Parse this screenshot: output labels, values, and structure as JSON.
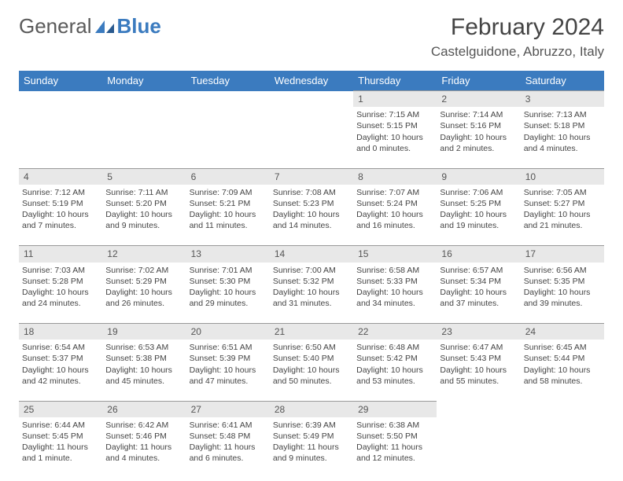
{
  "logo": {
    "text1": "General",
    "text2": "Blue"
  },
  "title": "February 2024",
  "location": "Castelguidone, Abruzzo, Italy",
  "colors": {
    "header_bg": "#3b7bbf",
    "daynum_bg": "#e8e8e8",
    "text": "#444444"
  },
  "weekdays": [
    "Sunday",
    "Monday",
    "Tuesday",
    "Wednesday",
    "Thursday",
    "Friday",
    "Saturday"
  ],
  "weeks": [
    {
      "nums": [
        "",
        "",
        "",
        "",
        "1",
        "2",
        "3"
      ],
      "cells": [
        null,
        null,
        null,
        null,
        {
          "sr": "Sunrise: 7:15 AM",
          "ss": "Sunset: 5:15 PM",
          "dl1": "Daylight: 10 hours",
          "dl2": "and 0 minutes."
        },
        {
          "sr": "Sunrise: 7:14 AM",
          "ss": "Sunset: 5:16 PM",
          "dl1": "Daylight: 10 hours",
          "dl2": "and 2 minutes."
        },
        {
          "sr": "Sunrise: 7:13 AM",
          "ss": "Sunset: 5:18 PM",
          "dl1": "Daylight: 10 hours",
          "dl2": "and 4 minutes."
        }
      ]
    },
    {
      "nums": [
        "4",
        "5",
        "6",
        "7",
        "8",
        "9",
        "10"
      ],
      "cells": [
        {
          "sr": "Sunrise: 7:12 AM",
          "ss": "Sunset: 5:19 PM",
          "dl1": "Daylight: 10 hours",
          "dl2": "and 7 minutes."
        },
        {
          "sr": "Sunrise: 7:11 AM",
          "ss": "Sunset: 5:20 PM",
          "dl1": "Daylight: 10 hours",
          "dl2": "and 9 minutes."
        },
        {
          "sr": "Sunrise: 7:09 AM",
          "ss": "Sunset: 5:21 PM",
          "dl1": "Daylight: 10 hours",
          "dl2": "and 11 minutes."
        },
        {
          "sr": "Sunrise: 7:08 AM",
          "ss": "Sunset: 5:23 PM",
          "dl1": "Daylight: 10 hours",
          "dl2": "and 14 minutes."
        },
        {
          "sr": "Sunrise: 7:07 AM",
          "ss": "Sunset: 5:24 PM",
          "dl1": "Daylight: 10 hours",
          "dl2": "and 16 minutes."
        },
        {
          "sr": "Sunrise: 7:06 AM",
          "ss": "Sunset: 5:25 PM",
          "dl1": "Daylight: 10 hours",
          "dl2": "and 19 minutes."
        },
        {
          "sr": "Sunrise: 7:05 AM",
          "ss": "Sunset: 5:27 PM",
          "dl1": "Daylight: 10 hours",
          "dl2": "and 21 minutes."
        }
      ]
    },
    {
      "nums": [
        "11",
        "12",
        "13",
        "14",
        "15",
        "16",
        "17"
      ],
      "cells": [
        {
          "sr": "Sunrise: 7:03 AM",
          "ss": "Sunset: 5:28 PM",
          "dl1": "Daylight: 10 hours",
          "dl2": "and 24 minutes."
        },
        {
          "sr": "Sunrise: 7:02 AM",
          "ss": "Sunset: 5:29 PM",
          "dl1": "Daylight: 10 hours",
          "dl2": "and 26 minutes."
        },
        {
          "sr": "Sunrise: 7:01 AM",
          "ss": "Sunset: 5:30 PM",
          "dl1": "Daylight: 10 hours",
          "dl2": "and 29 minutes."
        },
        {
          "sr": "Sunrise: 7:00 AM",
          "ss": "Sunset: 5:32 PM",
          "dl1": "Daylight: 10 hours",
          "dl2": "and 31 minutes."
        },
        {
          "sr": "Sunrise: 6:58 AM",
          "ss": "Sunset: 5:33 PM",
          "dl1": "Daylight: 10 hours",
          "dl2": "and 34 minutes."
        },
        {
          "sr": "Sunrise: 6:57 AM",
          "ss": "Sunset: 5:34 PM",
          "dl1": "Daylight: 10 hours",
          "dl2": "and 37 minutes."
        },
        {
          "sr": "Sunrise: 6:56 AM",
          "ss": "Sunset: 5:35 PM",
          "dl1": "Daylight: 10 hours",
          "dl2": "and 39 minutes."
        }
      ]
    },
    {
      "nums": [
        "18",
        "19",
        "20",
        "21",
        "22",
        "23",
        "24"
      ],
      "cells": [
        {
          "sr": "Sunrise: 6:54 AM",
          "ss": "Sunset: 5:37 PM",
          "dl1": "Daylight: 10 hours",
          "dl2": "and 42 minutes."
        },
        {
          "sr": "Sunrise: 6:53 AM",
          "ss": "Sunset: 5:38 PM",
          "dl1": "Daylight: 10 hours",
          "dl2": "and 45 minutes."
        },
        {
          "sr": "Sunrise: 6:51 AM",
          "ss": "Sunset: 5:39 PM",
          "dl1": "Daylight: 10 hours",
          "dl2": "and 47 minutes."
        },
        {
          "sr": "Sunrise: 6:50 AM",
          "ss": "Sunset: 5:40 PM",
          "dl1": "Daylight: 10 hours",
          "dl2": "and 50 minutes."
        },
        {
          "sr": "Sunrise: 6:48 AM",
          "ss": "Sunset: 5:42 PM",
          "dl1": "Daylight: 10 hours",
          "dl2": "and 53 minutes."
        },
        {
          "sr": "Sunrise: 6:47 AM",
          "ss": "Sunset: 5:43 PM",
          "dl1": "Daylight: 10 hours",
          "dl2": "and 55 minutes."
        },
        {
          "sr": "Sunrise: 6:45 AM",
          "ss": "Sunset: 5:44 PM",
          "dl1": "Daylight: 10 hours",
          "dl2": "and 58 minutes."
        }
      ]
    },
    {
      "nums": [
        "25",
        "26",
        "27",
        "28",
        "29",
        "",
        ""
      ],
      "cells": [
        {
          "sr": "Sunrise: 6:44 AM",
          "ss": "Sunset: 5:45 PM",
          "dl1": "Daylight: 11 hours",
          "dl2": "and 1 minute."
        },
        {
          "sr": "Sunrise: 6:42 AM",
          "ss": "Sunset: 5:46 PM",
          "dl1": "Daylight: 11 hours",
          "dl2": "and 4 minutes."
        },
        {
          "sr": "Sunrise: 6:41 AM",
          "ss": "Sunset: 5:48 PM",
          "dl1": "Daylight: 11 hours",
          "dl2": "and 6 minutes."
        },
        {
          "sr": "Sunrise: 6:39 AM",
          "ss": "Sunset: 5:49 PM",
          "dl1": "Daylight: 11 hours",
          "dl2": "and 9 minutes."
        },
        {
          "sr": "Sunrise: 6:38 AM",
          "ss": "Sunset: 5:50 PM",
          "dl1": "Daylight: 11 hours",
          "dl2": "and 12 minutes."
        },
        null,
        null
      ]
    }
  ]
}
